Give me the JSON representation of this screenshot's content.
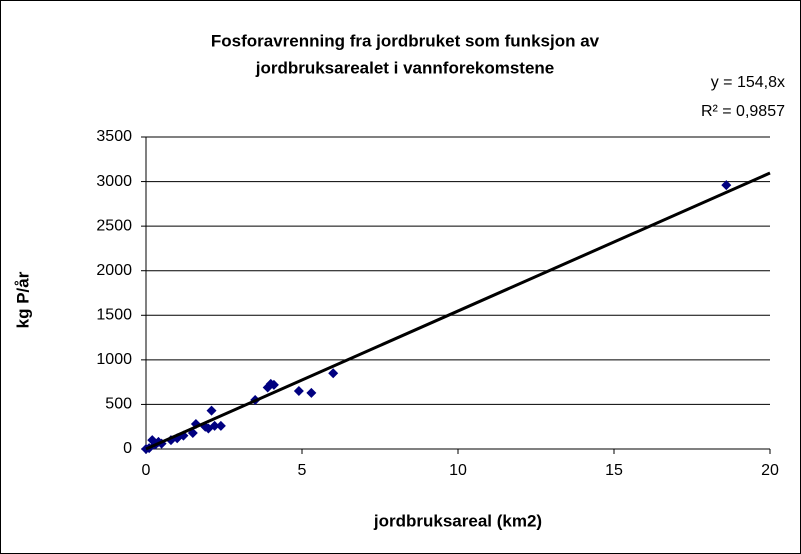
{
  "chart_data": {
    "type": "scatter",
    "title": [
      "Fosforavrenning fra jordbruket som funksjon av",
      "jordbruksarealet i vannforekomstene"
    ],
    "xlabel": "jordbruksareal (km2)",
    "ylabel": "kg P/år",
    "x": [
      0,
      0.1,
      0.2,
      0.3,
      0.4,
      0.5,
      0.8,
      1.0,
      1.2,
      1.5,
      1.6,
      1.9,
      2.0,
      2.1,
      2.2,
      2.4,
      3.5,
      3.9,
      4.0,
      4.1,
      4.9,
      5.3,
      6.0,
      18.6
    ],
    "series": [
      {
        "name": "kg P/år",
        "color": "#000080",
        "values": [
          0,
          10,
          100,
          50,
          80,
          60,
          100,
          120,
          150,
          180,
          280,
          250,
          230,
          430,
          260,
          260,
          550,
          690,
          730,
          720,
          650,
          630,
          850,
          2960
        ]
      }
    ],
    "trendline": {
      "slope": 154.8,
      "equation": "y = 154,8x",
      "r2": "R² = 0,9857"
    },
    "xlim": [
      0,
      20
    ],
    "xticks": [
      0,
      5,
      10,
      15,
      20
    ],
    "ylim": [
      0,
      3500
    ],
    "yticks": [
      0,
      500,
      1000,
      1500,
      2000,
      2500,
      3000,
      3500
    ],
    "grid": true
  }
}
